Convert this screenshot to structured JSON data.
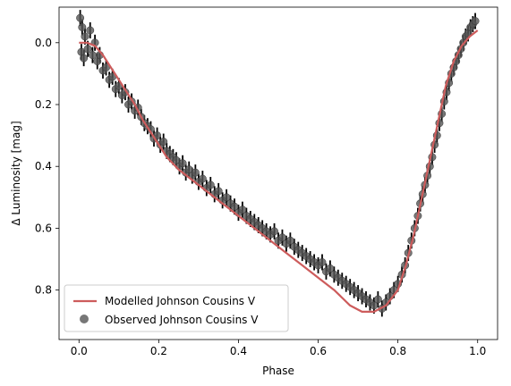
{
  "chart_data": {
    "type": "scatter",
    "xlabel": "Phase",
    "ylabel": "Δ Luminosity [mag]",
    "xlim": [
      -0.05,
      1.05
    ],
    "ylim": [
      0.96,
      -0.115
    ],
    "y_inverted": true,
    "x_ticks": [
      "0.0",
      "0.2",
      "0.4",
      "0.6",
      "0.8",
      "1.0"
    ],
    "x_tick_values": [
      0.0,
      0.2,
      0.4,
      0.6,
      0.8,
      1.0
    ],
    "y_ticks": [
      "0.0",
      "0.2",
      "0.4",
      "0.6",
      "0.8"
    ],
    "y_tick_values": [
      0.0,
      0.2,
      0.4,
      0.6,
      0.8
    ],
    "grid": false,
    "legend_position": "lower-left",
    "series": [
      {
        "name": "Modelled Johnson Cousins V",
        "kind": "line",
        "color": "#cd5c5c",
        "x": [
          0.0,
          0.02,
          0.04,
          0.06,
          0.08,
          0.1,
          0.12,
          0.14,
          0.16,
          0.18,
          0.2,
          0.22,
          0.25,
          0.28,
          0.3,
          0.33,
          0.36,
          0.4,
          0.44,
          0.48,
          0.52,
          0.56,
          0.6,
          0.64,
          0.68,
          0.71,
          0.74,
          0.77,
          0.8,
          0.82,
          0.84,
          0.86,
          0.88,
          0.9,
          0.92,
          0.94,
          0.96,
          0.98,
          1.0
        ],
        "y": [
          0.0,
          0.0,
          0.01,
          0.04,
          0.08,
          0.12,
          0.16,
          0.2,
          0.25,
          0.29,
          0.33,
          0.37,
          0.41,
          0.44,
          0.46,
          0.49,
          0.52,
          0.56,
          0.6,
          0.64,
          0.68,
          0.72,
          0.76,
          0.8,
          0.85,
          0.87,
          0.87,
          0.85,
          0.8,
          0.72,
          0.62,
          0.5,
          0.38,
          0.26,
          0.14,
          0.06,
          0.01,
          -0.02,
          -0.04
        ]
      },
      {
        "name": "Observed Johnson Cousins V",
        "kind": "scatter",
        "color": "#555555",
        "x": [
          0.003,
          0.006,
          0.008,
          0.012,
          0.015,
          0.022,
          0.028,
          0.034,
          0.04,
          0.046,
          0.052,
          0.06,
          0.068,
          0.076,
          0.084,
          0.092,
          0.1,
          0.108,
          0.116,
          0.124,
          0.132,
          0.14,
          0.148,
          0.156,
          0.164,
          0.172,
          0.18,
          0.188,
          0.196,
          0.204,
          0.212,
          0.22,
          0.228,
          0.236,
          0.244,
          0.252,
          0.26,
          0.268,
          0.276,
          0.284,
          0.292,
          0.3,
          0.31,
          0.32,
          0.33,
          0.34,
          0.35,
          0.36,
          0.37,
          0.38,
          0.39,
          0.4,
          0.41,
          0.42,
          0.43,
          0.44,
          0.45,
          0.46,
          0.47,
          0.48,
          0.49,
          0.5,
          0.51,
          0.52,
          0.53,
          0.54,
          0.55,
          0.56,
          0.57,
          0.58,
          0.59,
          0.6,
          0.61,
          0.62,
          0.63,
          0.64,
          0.65,
          0.66,
          0.67,
          0.68,
          0.69,
          0.7,
          0.71,
          0.72,
          0.73,
          0.74,
          0.75,
          0.76,
          0.77,
          0.78,
          0.79,
          0.8,
          0.81,
          0.818,
          0.826,
          0.834,
          0.842,
          0.85,
          0.856,
          0.862,
          0.868,
          0.874,
          0.88,
          0.886,
          0.892,
          0.898,
          0.904,
          0.91,
          0.916,
          0.922,
          0.928,
          0.934,
          0.94,
          0.946,
          0.952,
          0.958,
          0.964,
          0.97,
          0.976,
          0.982,
          0.988,
          0.994
        ],
        "y": [
          -0.08,
          0.03,
          -0.05,
          0.05,
          -0.02,
          0.02,
          -0.04,
          0.04,
          0.0,
          0.06,
          0.04,
          0.09,
          0.08,
          0.12,
          0.11,
          0.15,
          0.14,
          0.17,
          0.16,
          0.2,
          0.19,
          0.22,
          0.21,
          0.24,
          0.26,
          0.27,
          0.28,
          0.31,
          0.3,
          0.33,
          0.32,
          0.35,
          0.36,
          0.37,
          0.38,
          0.4,
          0.39,
          0.42,
          0.41,
          0.43,
          0.42,
          0.45,
          0.44,
          0.47,
          0.46,
          0.49,
          0.48,
          0.51,
          0.5,
          0.52,
          0.53,
          0.55,
          0.54,
          0.56,
          0.57,
          0.58,
          0.59,
          0.6,
          0.61,
          0.62,
          0.61,
          0.64,
          0.63,
          0.65,
          0.64,
          0.66,
          0.67,
          0.68,
          0.69,
          0.7,
          0.71,
          0.72,
          0.71,
          0.74,
          0.73,
          0.75,
          0.76,
          0.77,
          0.78,
          0.79,
          0.8,
          0.81,
          0.82,
          0.83,
          0.84,
          0.85,
          0.83,
          0.86,
          0.84,
          0.82,
          0.8,
          0.78,
          0.75,
          0.72,
          0.68,
          0.64,
          0.6,
          0.56,
          0.52,
          0.49,
          0.46,
          0.43,
          0.4,
          0.37,
          0.33,
          0.3,
          0.26,
          0.23,
          0.19,
          0.16,
          0.13,
          0.1,
          0.08,
          0.06,
          0.04,
          0.02,
          0.0,
          -0.02,
          -0.03,
          -0.05,
          -0.06,
          -0.07
        ]
      }
    ]
  }
}
